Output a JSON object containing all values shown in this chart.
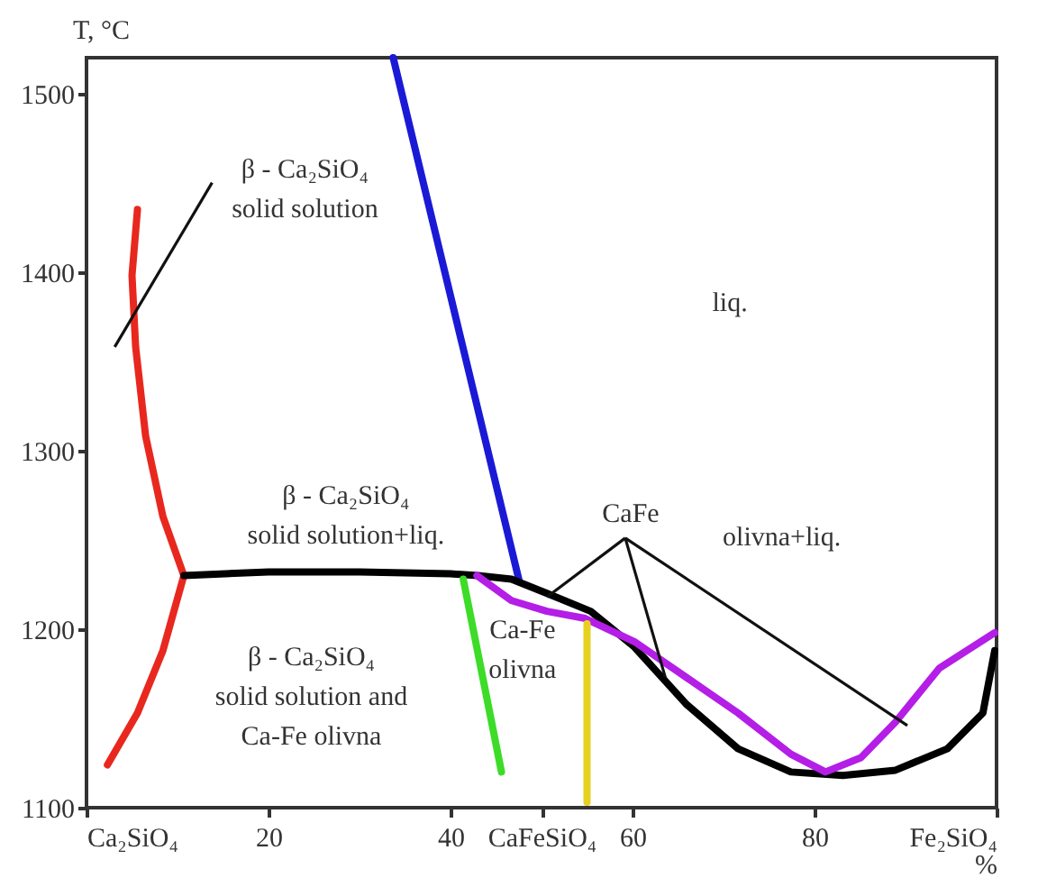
{
  "chart_data": {
    "type": "line",
    "ylabel": "T, °C",
    "xlabel": "%",
    "xlim": [
      0,
      100
    ],
    "ylim": [
      1100,
      1520
    ],
    "xticks": [
      {
        "value": 0,
        "label": "Ca₂SiO₄"
      },
      20,
      40,
      {
        "value": 50,
        "label": "CaFeSiO₄"
      },
      60,
      80,
      {
        "value": 100,
        "label": "Fe₂SiO₄"
      }
    ],
    "yticks": [
      1100,
      1200,
      1300,
      1400,
      1500
    ],
    "grid": false,
    "series": [
      {
        "color": "#e8281e",
        "x": [
          2.3,
          5.6,
          8.4,
          10.7,
          8.4,
          6.5,
          5.4,
          5.0,
          5.6
        ],
        "values": [
          1124,
          1153,
          1188,
          1230,
          1263,
          1308,
          1358,
          1398,
          1435
        ]
      },
      {
        "color": "#1a1ad6",
        "x": [
          33.7,
          47.5
        ],
        "values": [
          1520,
          1228
        ]
      },
      {
        "color": "#000000",
        "x": [
          10.7,
          20,
          30,
          40,
          43,
          46.7,
          50.6,
          55.4,
          60.2,
          65.9,
          71.6,
          77.4,
          83.1,
          88.9,
          94.6,
          98.5,
          99.8
        ],
        "values": [
          1230,
          1232,
          1232,
          1231,
          1230,
          1228,
          1220,
          1210,
          1190,
          1158,
          1133,
          1120,
          1118,
          1121,
          1133,
          1153,
          1188
        ]
      },
      {
        "color": "#b41ee6",
        "x": [
          42.9,
          46.7,
          50.6,
          54.8,
          60.2,
          65.9,
          71.6,
          77.4,
          81.2,
          85.1,
          88.9,
          93.7,
          99.8
        ],
        "values": [
          1230,
          1216,
          1210,
          1206,
          1193,
          1173,
          1153,
          1130,
          1120,
          1128,
          1148,
          1178,
          1198
        ]
      },
      {
        "color": "#3cdc28",
        "x": [
          41.4,
          45.6
        ],
        "values": [
          1228,
          1120
        ]
      },
      {
        "color": "#e6d21e",
        "x": [
          55,
          55
        ],
        "values": [
          1203,
          1103
        ]
      }
    ],
    "annotations": [
      "β - Ca₂SiO₄\nsolid solution",
      "liq.",
      "β - Ca₂SiO₄\nsolid solution+liq.",
      "β - Ca₂SiO₄\nsolid solution and\nCa-Fe olivna",
      "Ca-Fe\nolivna",
      {
        "text": "CaFe",
        "x": 50.6,
        "y": 1218
      },
      "olivna+liq."
    ]
  }
}
